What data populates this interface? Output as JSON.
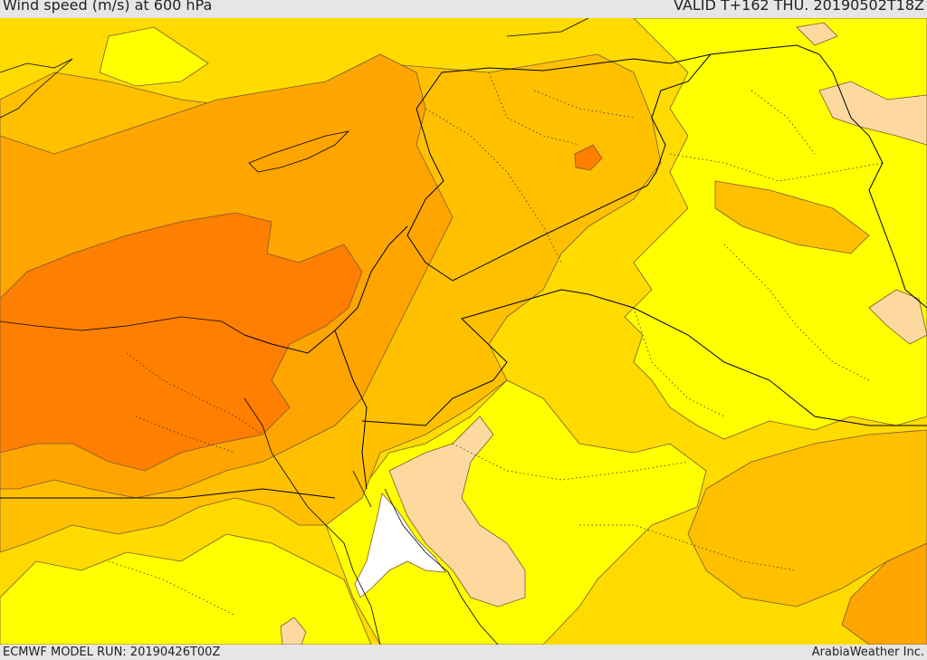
{
  "header": {
    "title": "Wind speed (m/s) at 600 hPa",
    "valid_time": "VALID T+162 THU. 20190502T18Z"
  },
  "footer": {
    "model_run": "ECMWF MODEL RUN: 20190426T00Z",
    "credit": "ArabiaWeather Inc."
  },
  "map": {
    "parameter": "wind speed",
    "unit": "m/s",
    "pressure_level_hpa": 600,
    "colors": {
      "white": "#ffffff",
      "peach": "#fdd9a0",
      "yellow": "#ffff00",
      "gold": "#ffdb00",
      "light_orange": "#ffc000",
      "orange": "#ffa500",
      "dark_orange": "#ff7f00",
      "contour_line": "#7a5a3a",
      "border_line": "#000000"
    }
  }
}
